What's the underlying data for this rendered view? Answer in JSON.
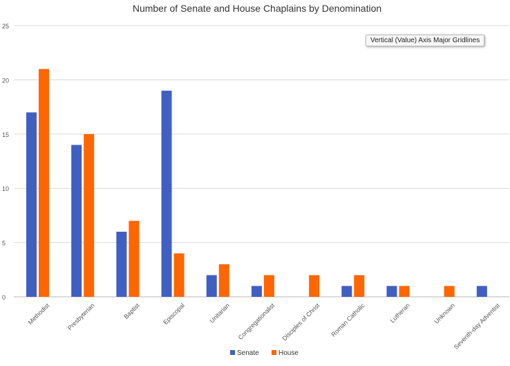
{
  "chart_data": {
    "type": "bar",
    "title": "Number of Senate and House Chaplains by Denomination",
    "xlabel": "",
    "ylabel": "",
    "categories": [
      "Methodist",
      "Presbyterian",
      "Baptist",
      "Episcopal",
      "Unitarian",
      "Congregationalist",
      "Disciples of Christ",
      "Roman Catholic",
      "Lutheran",
      "Unknown",
      "Seventh-day Adventist"
    ],
    "series": [
      {
        "name": "Senate",
        "color": "#3f5fc2",
        "values": [
          17,
          14,
          6,
          19,
          2,
          1,
          0,
          1,
          1,
          0,
          1
        ]
      },
      {
        "name": "House",
        "color": "#ff6600",
        "values": [
          21,
          15,
          7,
          4,
          3,
          2,
          2,
          2,
          1,
          1,
          0
        ]
      }
    ],
    "ylim": [
      0,
      25
    ],
    "yticks": [
      0,
      5,
      10,
      15,
      20,
      25
    ],
    "grid": true,
    "legend_position": "bottom"
  },
  "tooltip": {
    "text": "Vertical (Value) Axis Major Gridlines"
  }
}
